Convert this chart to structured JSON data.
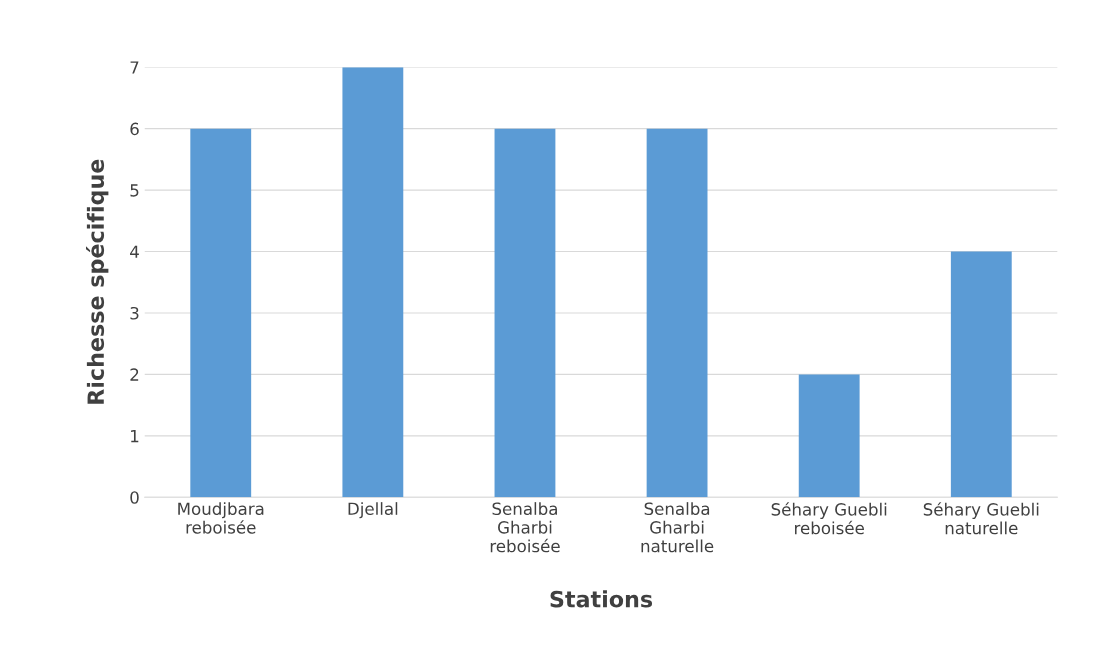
{
  "chart_data": {
    "type": "bar",
    "xlabel": "Stations",
    "ylabel": "Richesse spécifique",
    "categories": [
      "Moudjbara\nreboisée",
      "Djellal",
      "Senalba\nGharbi\nreboisée",
      "Senalba\nGharbi\nnaturelle",
      "Séhary Guebli\nreboisée",
      "Séhary Guebli\nnaturelle"
    ],
    "values": [
      6,
      7,
      6,
      6,
      2,
      4
    ],
    "color": "#5b9bd5",
    "ylim": [
      0,
      7
    ],
    "yticks": [
      0,
      1,
      2,
      3,
      4,
      5,
      6,
      7
    ],
    "grid": "y"
  }
}
